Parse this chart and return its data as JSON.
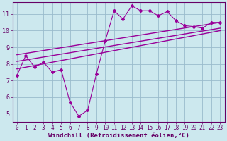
{
  "xlabel": "Windchill (Refroidissement éolien,°C)",
  "bg_color": "#cce8ee",
  "line_color": "#990099",
  "grid_color": "#99bbcc",
  "axis_color": "#660066",
  "xlim": [
    -0.5,
    23.5
  ],
  "ylim": [
    4.5,
    11.7
  ],
  "xtick_vals": [
    0,
    1,
    2,
    3,
    4,
    5,
    6,
    7,
    8,
    9,
    10,
    11,
    12,
    13,
    14,
    15,
    16,
    17,
    18,
    19,
    20,
    21,
    22,
    23
  ],
  "ytick_vals": [
    5,
    6,
    7,
    8,
    9,
    10,
    11
  ],
  "scatter_x": [
    0,
    1,
    2,
    3,
    4,
    5,
    6,
    7,
    8,
    9,
    10,
    11,
    12,
    13,
    14,
    15,
    16,
    17,
    18,
    19,
    20,
    21,
    22,
    23
  ],
  "scatter_y": [
    7.3,
    8.5,
    7.8,
    8.1,
    7.5,
    7.65,
    5.7,
    4.85,
    5.2,
    7.4,
    9.4,
    11.2,
    10.7,
    11.5,
    11.2,
    11.2,
    10.9,
    11.15,
    10.6,
    10.3,
    10.25,
    10.15,
    10.5,
    10.5
  ],
  "line1_x": [
    0,
    23
  ],
  "line1_y": [
    8.55,
    10.5
  ],
  "line2_x": [
    0,
    23
  ],
  "line2_y": [
    8.15,
    10.15
  ],
  "line3_x": [
    0,
    23
  ],
  "line3_y": [
    7.7,
    10.0
  ],
  "tick_fontsize": 5.5,
  "label_fontsize": 6.5
}
